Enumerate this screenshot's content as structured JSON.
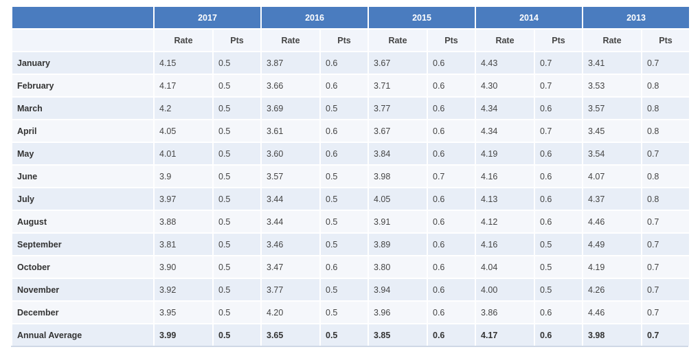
{
  "years": [
    "2017",
    "2016",
    "2015",
    "2014",
    "2013"
  ],
  "subheaders": {
    "rate": "Rate",
    "pts": "Pts"
  },
  "rows": [
    {
      "month": "January",
      "values": [
        [
          "4.15",
          "0.5"
        ],
        [
          "3.87",
          "0.6"
        ],
        [
          "3.67",
          "0.6"
        ],
        [
          "4.43",
          "0.7"
        ],
        [
          "3.41",
          "0.7"
        ]
      ]
    },
    {
      "month": "February",
      "values": [
        [
          "4.17",
          "0.5"
        ],
        [
          "3.66",
          "0.6"
        ],
        [
          "3.71",
          "0.6"
        ],
        [
          "4.30",
          "0.7"
        ],
        [
          "3.53",
          "0.8"
        ]
      ]
    },
    {
      "month": "March",
      "values": [
        [
          "4.2",
          "0.5"
        ],
        [
          "3.69",
          "0.5"
        ],
        [
          "3.77",
          "0.6"
        ],
        [
          "4.34",
          "0.6"
        ],
        [
          "3.57",
          "0.8"
        ]
      ]
    },
    {
      "month": "April",
      "values": [
        [
          "4.05",
          "0.5"
        ],
        [
          "3.61",
          "0.6"
        ],
        [
          "3.67",
          "0.6"
        ],
        [
          "4.34",
          "0.7"
        ],
        [
          "3.45",
          "0.8"
        ]
      ]
    },
    {
      "month": "May",
      "values": [
        [
          "4.01",
          "0.5"
        ],
        [
          "3.60",
          "0.6"
        ],
        [
          "3.84",
          "0.6"
        ],
        [
          "4.19",
          "0.6"
        ],
        [
          "3.54",
          "0.7"
        ]
      ]
    },
    {
      "month": "June",
      "values": [
        [
          "3.9",
          "0.5"
        ],
        [
          "3.57",
          "0.5"
        ],
        [
          "3.98",
          "0.7"
        ],
        [
          "4.16",
          "0.6"
        ],
        [
          "4.07",
          "0.8"
        ]
      ]
    },
    {
      "month": "July",
      "values": [
        [
          "3.97",
          "0.5"
        ],
        [
          "3.44",
          "0.5"
        ],
        [
          "4.05",
          "0.6"
        ],
        [
          "4.13",
          "0.6"
        ],
        [
          "4.37",
          "0.8"
        ]
      ]
    },
    {
      "month": "August",
      "values": [
        [
          "3.88",
          "0.5"
        ],
        [
          "3.44",
          "0.5"
        ],
        [
          "3.91",
          "0.6"
        ],
        [
          "4.12",
          "0.6"
        ],
        [
          "4.46",
          "0.7"
        ]
      ]
    },
    {
      "month": "September",
      "values": [
        [
          "3.81",
          "0.5"
        ],
        [
          "3.46",
          "0.5"
        ],
        [
          "3.89",
          "0.6"
        ],
        [
          "4.16",
          "0.5"
        ],
        [
          "4.49",
          "0.7"
        ]
      ]
    },
    {
      "month": "October",
      "values": [
        [
          " 3.90",
          "0.5"
        ],
        [
          "3.47",
          "0.6"
        ],
        [
          "3.80",
          "0.6"
        ],
        [
          "4.04",
          "0.5"
        ],
        [
          "4.19",
          "0.7"
        ]
      ]
    },
    {
      "month": "November",
      "values": [
        [
          "3.92",
          "0.5"
        ],
        [
          "3.77",
          "0.5"
        ],
        [
          "3.94",
          "0.6"
        ],
        [
          "4.00",
          "0.5"
        ],
        [
          "4.26",
          "0.7"
        ]
      ]
    },
    {
      "month": "December",
      "values": [
        [
          "3.95",
          "0.5"
        ],
        [
          "4.20",
          "0.5"
        ],
        [
          "3.96",
          "0.6"
        ],
        [
          "3.86",
          "0.6"
        ],
        [
          "4.46",
          "0.7"
        ]
      ]
    }
  ],
  "average": {
    "label": "Annual Average",
    "values": [
      [
        "3.99",
        "0.5"
      ],
      [
        "3.65",
        "0.5"
      ],
      [
        "3.85",
        "0.6"
      ],
      [
        "4.17",
        "0.6"
      ],
      [
        "3.98",
        "0.7"
      ]
    ]
  }
}
